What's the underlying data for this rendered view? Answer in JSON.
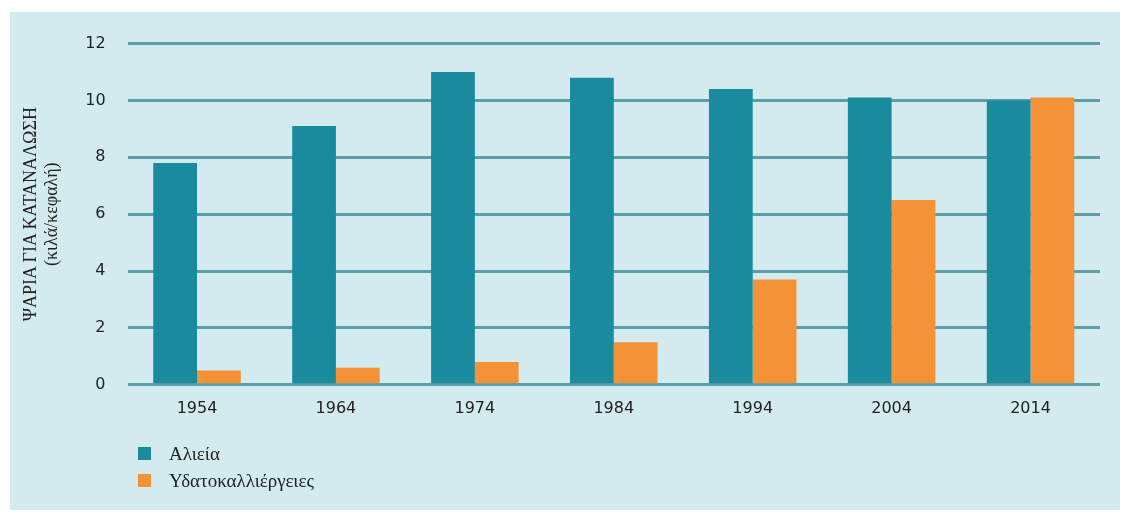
{
  "chart_data": {
    "type": "bar",
    "ylabel": "ΨΑΡΙΑ ΓΙΑ ΚΑΤΑΝΑΛΩΣΗ\n(κιλά/κεφαλή)",
    "categories": [
      "1954",
      "1964",
      "1974",
      "1984",
      "1994",
      "2004",
      "2014"
    ],
    "series": [
      {
        "name": "Αλιεία",
        "color": "#1a8a9f",
        "values": [
          7.8,
          9.1,
          11.0,
          10.8,
          10.4,
          10.1,
          10.0
        ]
      },
      {
        "name": "Υδατοκαλλιέργειες",
        "color": "#f39237",
        "values": [
          0.5,
          0.6,
          0.8,
          1.5,
          3.7,
          6.5,
          10.1
        ]
      }
    ],
    "ylim": [
      0,
      12
    ],
    "yticks": [
      0,
      2,
      4,
      6,
      8,
      10,
      12
    ],
    "grid": "y",
    "legend": "bottom left"
  }
}
